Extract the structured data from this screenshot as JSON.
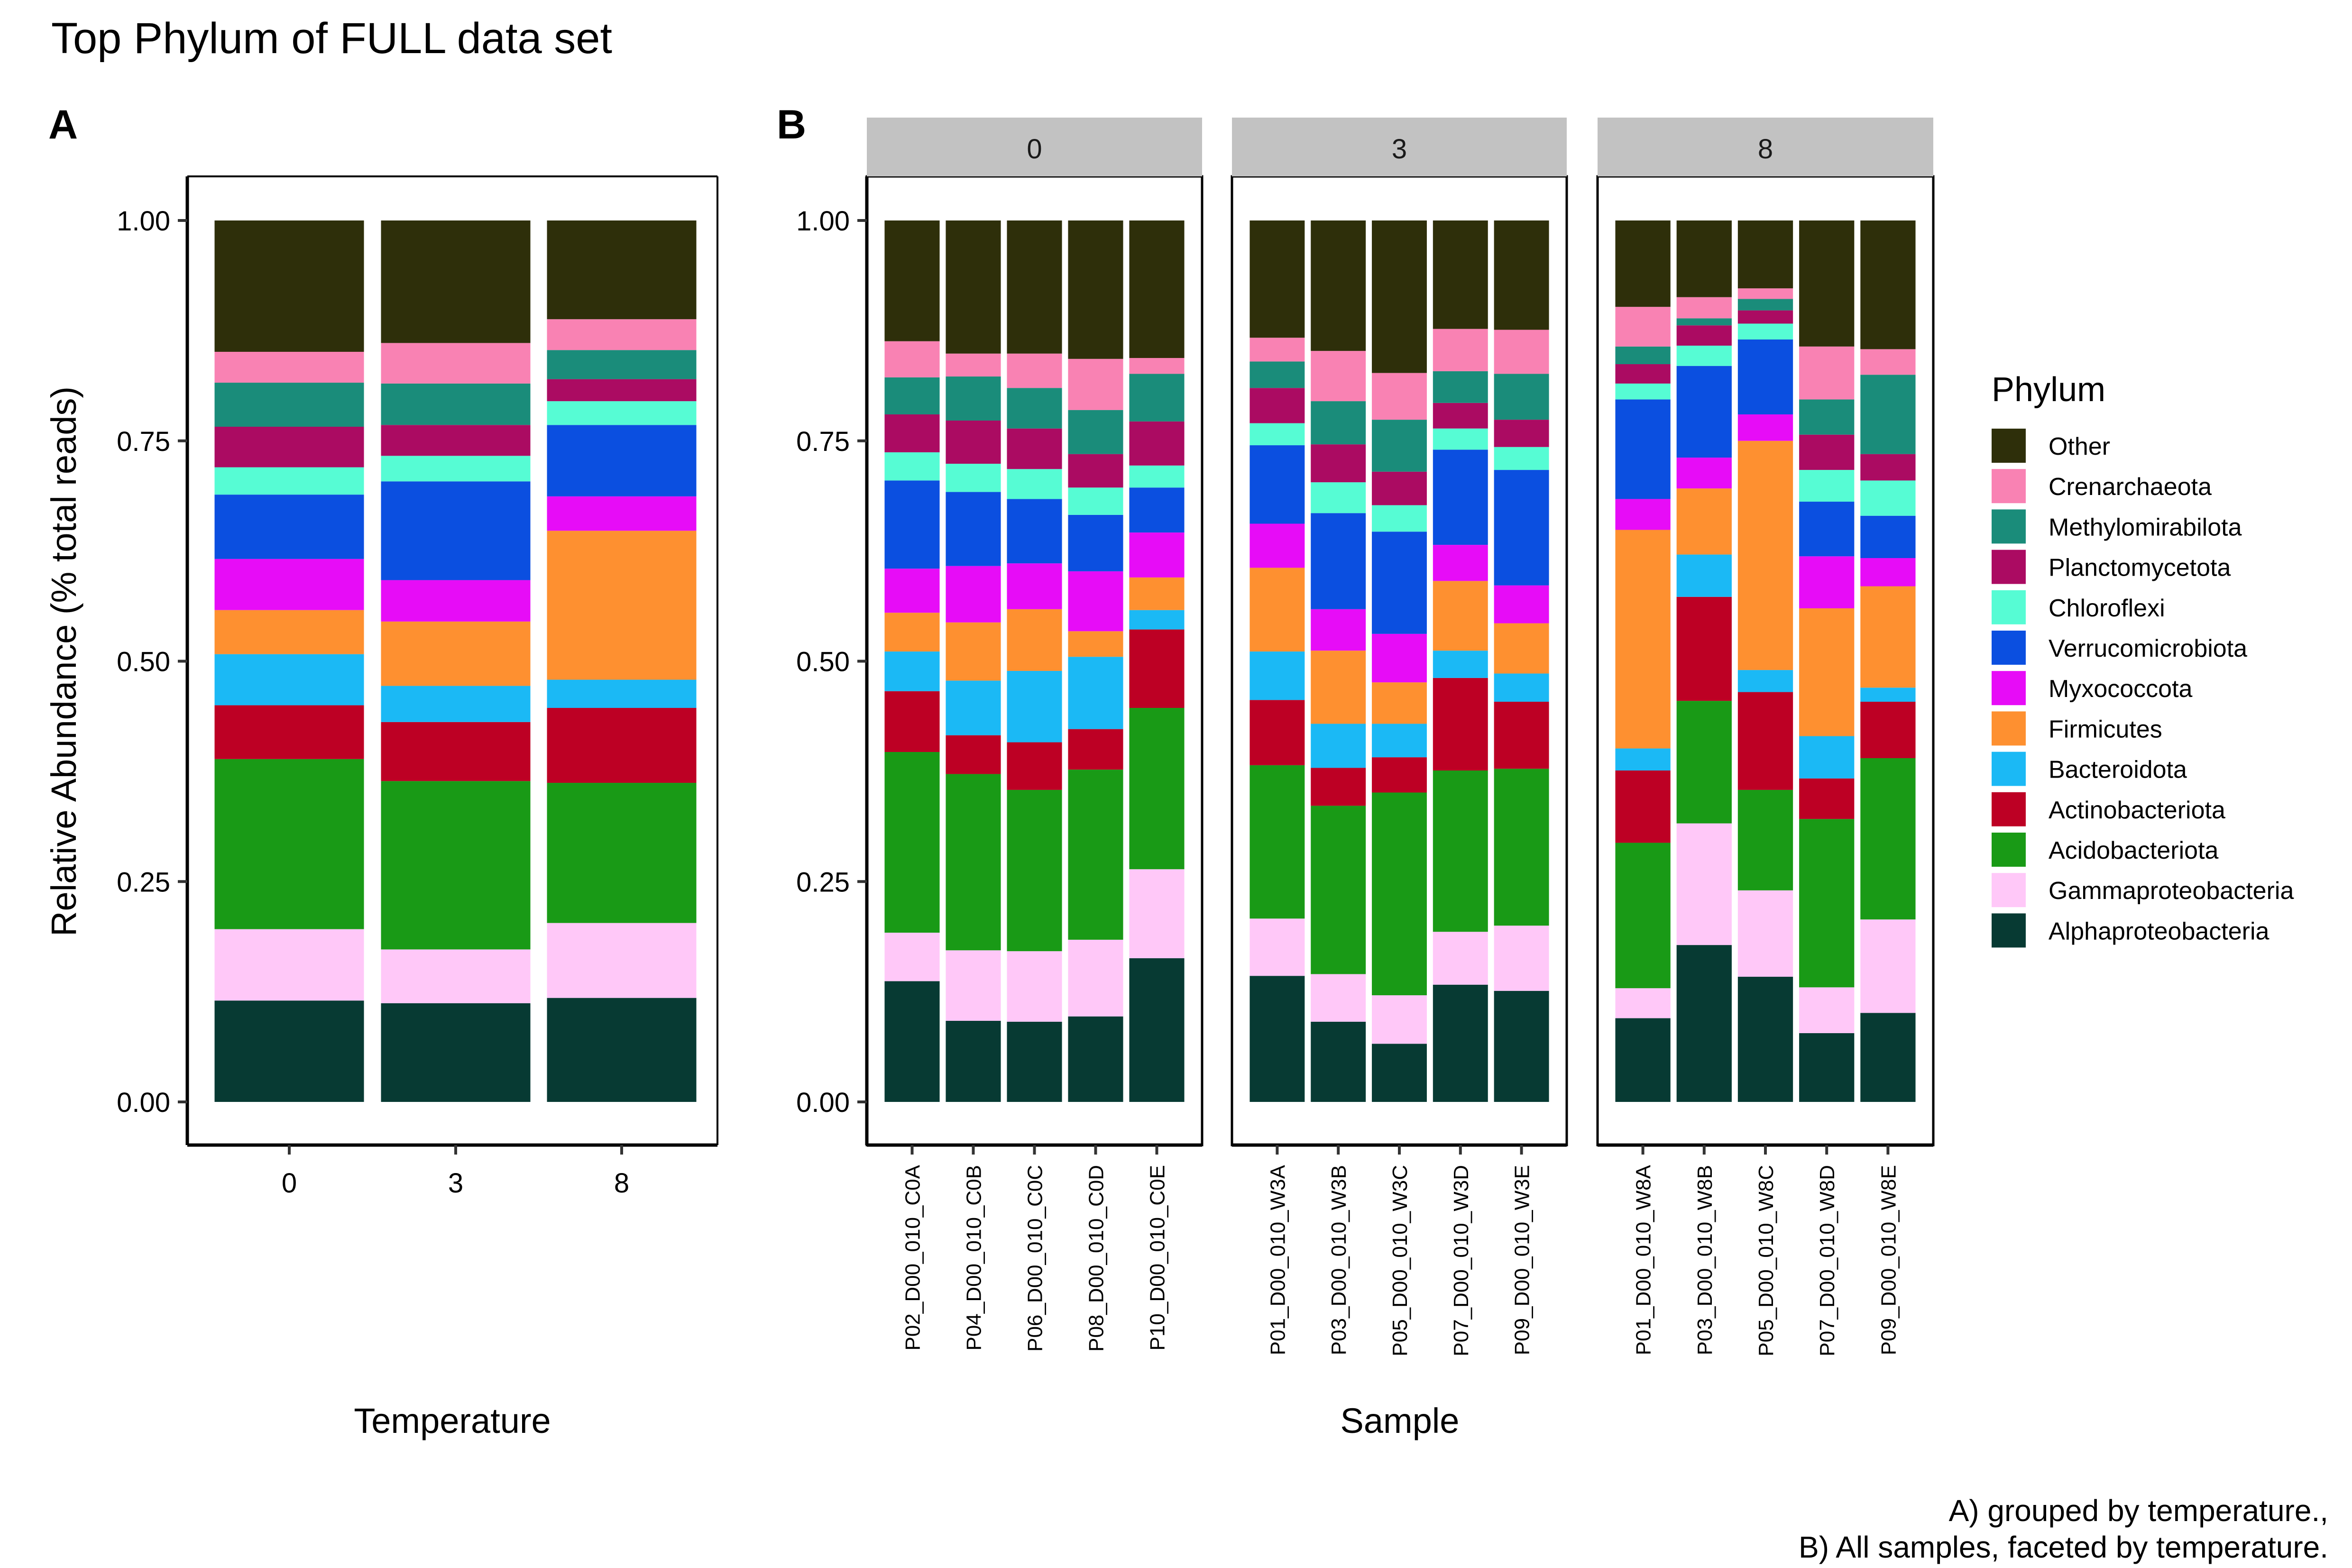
{
  "title": "Top Phylum of FULL data set",
  "caption_lines": [
    "A) grouped by temperature.,",
    "B) All samples, faceted by temperature."
  ],
  "legend": {
    "title": "Phylum",
    "placement": "right",
    "entries": [
      {
        "name": "Other",
        "color": "#2e2f0a"
      },
      {
        "name": "Crenarchaeota",
        "color": "#f982b3"
      },
      {
        "name": "Methylomirabilota",
        "color": "#1a8c7a"
      },
      {
        "name": "Planctomycetota",
        "color": "#ab0b62"
      },
      {
        "name": "Chloroflexi",
        "color": "#56fcd4"
      },
      {
        "name": "Verrucomicrobiota",
        "color": "#0b4fe0"
      },
      {
        "name": "Myxococcota",
        "color": "#e70cf7"
      },
      {
        "name": "Firmicutes",
        "color": "#fe9030"
      },
      {
        "name": "Bacteroidota",
        "color": "#1bb9f5"
      },
      {
        "name": "Actinobacteriota",
        "color": "#bd0024"
      },
      {
        "name": "Acidobacteriota",
        "color": "#199a16"
      },
      {
        "name": "Gammaproteobacteria",
        "color": "#ffc8f8"
      },
      {
        "name": "Alphaproteobacteria",
        "color": "#073a33"
      }
    ]
  },
  "chart_data": [
    {
      "id": "A",
      "panel_label": "A",
      "type": "bar",
      "stacked": true,
      "xlabel": "Temperature",
      "ylabel": "Relative Abundance (% total reads)",
      "ylim": [
        0,
        1.05
      ],
      "yticks": [
        "0.00",
        "0.25",
        "0.50",
        "0.75",
        "1.00"
      ],
      "grid": false,
      "categories": [
        "0",
        "3",
        "8"
      ],
      "stack_order": [
        "Alphaproteobacteria",
        "Gammaproteobacteria",
        "Acidobacteriota",
        "Actinobacteriota",
        "Bacteroidota",
        "Firmicutes",
        "Myxococcota",
        "Verrucomicrobiota",
        "Chloroflexi",
        "Planctomycetota",
        "Methylomirabilota",
        "Crenarchaeota",
        "Other"
      ],
      "series": [
        {
          "name": "Alphaproteobacteria",
          "values": [
            0.115,
            0.112,
            0.118
          ]
        },
        {
          "name": "Gammaproteobacteria",
          "values": [
            0.081,
            0.061,
            0.085
          ]
        },
        {
          "name": "Acidobacteriota",
          "values": [
            0.193,
            0.191,
            0.159
          ]
        },
        {
          "name": "Actinobacteriota",
          "values": [
            0.061,
            0.067,
            0.085
          ]
        },
        {
          "name": "Bacteroidota",
          "values": [
            0.058,
            0.041,
            0.032
          ]
        },
        {
          "name": "Firmicutes",
          "values": [
            0.05,
            0.073,
            0.169
          ]
        },
        {
          "name": "Myxococcota",
          "values": [
            0.058,
            0.047,
            0.039
          ]
        },
        {
          "name": "Verrucomicrobiota",
          "values": [
            0.073,
            0.112,
            0.081
          ]
        },
        {
          "name": "Chloroflexi",
          "values": [
            0.031,
            0.029,
            0.027
          ]
        },
        {
          "name": "Planctomycetota",
          "values": [
            0.046,
            0.035,
            0.025
          ]
        },
        {
          "name": "Methylomirabilota",
          "values": [
            0.05,
            0.047,
            0.033
          ]
        },
        {
          "name": "Crenarchaeota",
          "values": [
            0.035,
            0.046,
            0.035
          ]
        },
        {
          "name": "Other",
          "values": [
            0.149,
            0.139,
            0.112
          ]
        }
      ]
    },
    {
      "id": "B",
      "panel_label": "B",
      "type": "bar",
      "stacked": true,
      "xlabel": "Sample",
      "ylim": [
        0,
        1.05
      ],
      "yticks": [
        "0.00",
        "0.25",
        "0.50",
        "0.75",
        "1.00"
      ],
      "grid": false,
      "facets": [
        {
          "label": "0",
          "categories": [
            "P02_D00_010_C0A",
            "P04_D00_010_C0B",
            "P06_D00_010_C0C",
            "P08_D00_010_C0D",
            "P10_D00_010_C0E"
          ],
          "series": [
            {
              "name": "Alphaproteobacteria",
              "values": [
                0.137,
                0.092,
                0.091,
                0.097,
                0.163
              ]
            },
            {
              "name": "Gammaproteobacteria",
              "values": [
                0.055,
                0.08,
                0.08,
                0.087,
                0.101
              ]
            },
            {
              "name": "Acidobacteriota",
              "values": [
                0.205,
                0.2,
                0.183,
                0.193,
                0.183
              ]
            },
            {
              "name": "Actinobacteriota",
              "values": [
                0.069,
                0.044,
                0.054,
                0.046,
                0.089
              ]
            },
            {
              "name": "Bacteroidota",
              "values": [
                0.045,
                0.062,
                0.081,
                0.082,
                0.022
              ]
            },
            {
              "name": "Firmicutes",
              "values": [
                0.044,
                0.066,
                0.07,
                0.029,
                0.037
              ]
            },
            {
              "name": "Myxococcota",
              "values": [
                0.05,
                0.064,
                0.052,
                0.068,
                0.051
              ]
            },
            {
              "name": "Verrucomicrobiota",
              "values": [
                0.1,
                0.084,
                0.073,
                0.064,
                0.051
              ]
            },
            {
              "name": "Chloroflexi",
              "values": [
                0.032,
                0.032,
                0.034,
                0.031,
                0.025
              ]
            },
            {
              "name": "Planctomycetota",
              "values": [
                0.043,
                0.049,
                0.046,
                0.038,
                0.05
              ]
            },
            {
              "name": "Methylomirabilota",
              "values": [
                0.042,
                0.05,
                0.046,
                0.05,
                0.054
              ]
            },
            {
              "name": "Crenarchaeota",
              "values": [
                0.041,
                0.026,
                0.039,
                0.058,
                0.018
              ]
            },
            {
              "name": "Other",
              "values": [
                0.137,
                0.151,
                0.151,
                0.157,
                0.156
              ]
            }
          ]
        },
        {
          "label": "3",
          "categories": [
            "P01_D00_010_W3A",
            "P03_D00_010_W3B",
            "P05_D00_010_W3C",
            "P07_D00_010_W3D",
            "P09_D00_010_W3E"
          ],
          "series": [
            {
              "name": "Alphaproteobacteria",
              "values": [
                0.143,
                0.091,
                0.066,
                0.133,
                0.126
              ]
            },
            {
              "name": "Gammaproteobacteria",
              "values": [
                0.065,
                0.054,
                0.055,
                0.06,
                0.074
              ]
            },
            {
              "name": "Acidobacteriota",
              "values": [
                0.174,
                0.191,
                0.23,
                0.183,
                0.178
              ]
            },
            {
              "name": "Actinobacteriota",
              "values": [
                0.074,
                0.043,
                0.04,
                0.105,
                0.076
              ]
            },
            {
              "name": "Bacteroidota",
              "values": [
                0.055,
                0.05,
                0.038,
                0.031,
                0.032
              ]
            },
            {
              "name": "Firmicutes",
              "values": [
                0.095,
                0.083,
                0.047,
                0.079,
                0.057
              ]
            },
            {
              "name": "Myxococcota",
              "values": [
                0.05,
                0.047,
                0.055,
                0.041,
                0.043
              ]
            },
            {
              "name": "Verrucomicrobiota",
              "values": [
                0.089,
                0.109,
                0.116,
                0.108,
                0.131
              ]
            },
            {
              "name": "Chloroflexi",
              "values": [
                0.025,
                0.035,
                0.03,
                0.024,
                0.026
              ]
            },
            {
              "name": "Planctomycetota",
              "values": [
                0.04,
                0.043,
                0.038,
                0.029,
                0.031
              ]
            },
            {
              "name": "Methylomirabilota",
              "values": [
                0.03,
                0.049,
                0.059,
                0.036,
                0.052
              ]
            },
            {
              "name": "Crenarchaeota",
              "values": [
                0.027,
                0.057,
                0.053,
                0.048,
                0.05
              ]
            },
            {
              "name": "Other",
              "values": [
                0.133,
                0.148,
                0.173,
                0.123,
                0.124
              ]
            }
          ]
        },
        {
          "label": "8",
          "categories": [
            "P01_D00_010_W8A",
            "P03_D00_010_W8B",
            "P05_D00_010_W8C",
            "P07_D00_010_W8D",
            "P09_D00_010_W8E"
          ],
          "series": [
            {
              "name": "Alphaproteobacteria",
              "values": [
                0.095,
                0.178,
                0.142,
                0.078,
                0.101
              ]
            },
            {
              "name": "Gammaproteobacteria",
              "values": [
                0.034,
                0.138,
                0.098,
                0.052,
                0.106
              ]
            },
            {
              "name": "Acidobacteriota",
              "values": [
                0.165,
                0.139,
                0.114,
                0.191,
                0.183
              ]
            },
            {
              "name": "Actinobacteriota",
              "values": [
                0.082,
                0.118,
                0.111,
                0.046,
                0.064
              ]
            },
            {
              "name": "Bacteroidota",
              "values": [
                0.025,
                0.048,
                0.025,
                0.048,
                0.016
              ]
            },
            {
              "name": "Firmicutes",
              "values": [
                0.248,
                0.075,
                0.26,
                0.145,
                0.115
              ]
            },
            {
              "name": "Myxococcota",
              "values": [
                0.035,
                0.035,
                0.03,
                0.059,
                0.032
              ]
            },
            {
              "name": "Verrucomicrobiota",
              "values": [
                0.113,
                0.104,
                0.085,
                0.062,
                0.048
              ]
            },
            {
              "name": "Chloroflexi",
              "values": [
                0.018,
                0.023,
                0.018,
                0.036,
                0.04
              ]
            },
            {
              "name": "Planctomycetota",
              "values": [
                0.022,
                0.023,
                0.015,
                0.04,
                0.03
              ]
            },
            {
              "name": "Methylomirabilota",
              "values": [
                0.02,
                0.008,
                0.013,
                0.04,
                0.09
              ]
            },
            {
              "name": "Crenarchaeota",
              "values": [
                0.045,
                0.024,
                0.012,
                0.06,
                0.029
              ]
            },
            {
              "name": "Other",
              "values": [
                0.098,
                0.087,
                0.077,
                0.143,
                0.146
              ]
            }
          ]
        }
      ]
    }
  ]
}
